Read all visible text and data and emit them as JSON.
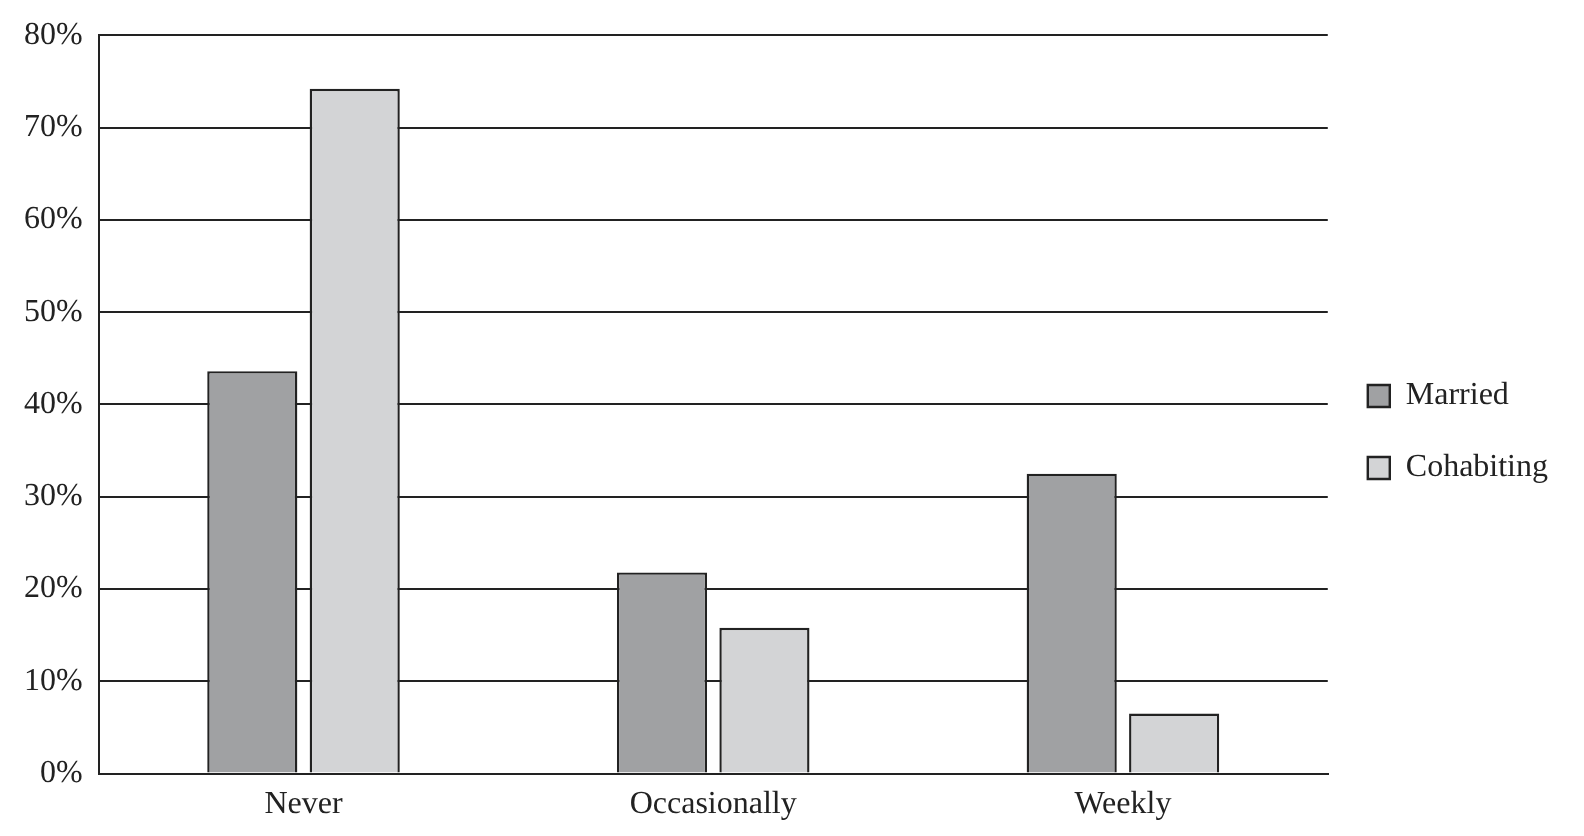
{
  "chart_data": {
    "type": "bar",
    "categories": [
      "Never",
      "Occasionally",
      "Weekly"
    ],
    "series": [
      {
        "name": "Married",
        "color": "#a0a1a3",
        "values": [
          43.6,
          21.8,
          32.5
        ]
      },
      {
        "name": "Cohabiting",
        "color": "#d3d4d6",
        "values": [
          74.2,
          15.8,
          6.5
        ]
      }
    ],
    "ylim": [
      0,
      80
    ],
    "yticks": [
      {
        "value": 0,
        "label": "0%"
      },
      {
        "value": 10,
        "label": "10%"
      },
      {
        "value": 20,
        "label": "20%"
      },
      {
        "value": 30,
        "label": "30%"
      },
      {
        "value": 40,
        "label": "40%"
      },
      {
        "value": 50,
        "label": "50%"
      },
      {
        "value": 60,
        "label": "60%"
      },
      {
        "value": 70,
        "label": "70%"
      },
      {
        "value": 80,
        "label": "80%"
      }
    ],
    "grid": "y",
    "legend": "right"
  }
}
